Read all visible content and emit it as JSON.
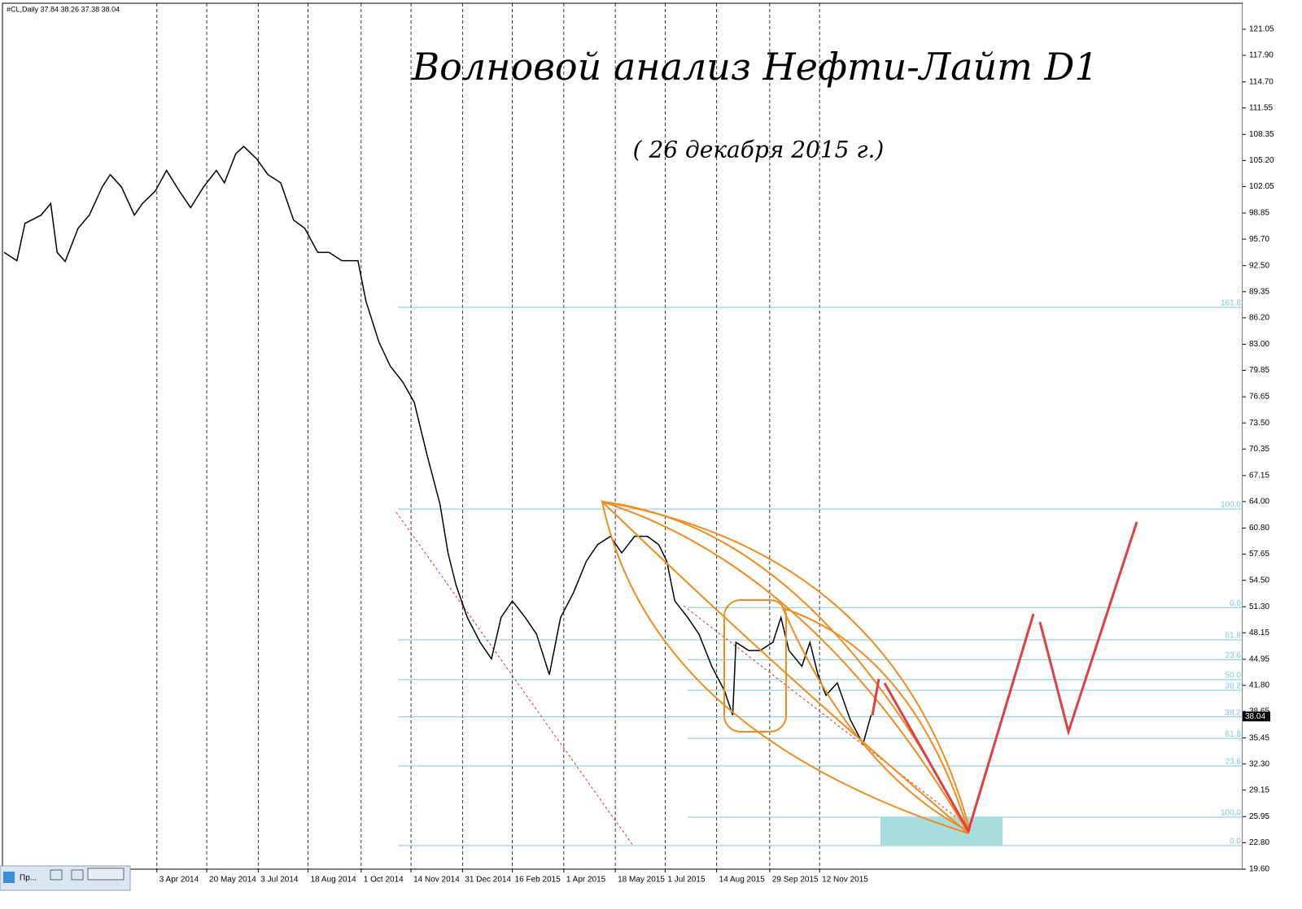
{
  "header": {
    "symbol": "#CL,Daily 37.84 38.26 37.38 38.04"
  },
  "taskbar": {
    "label": "Пр..."
  },
  "chart_data": {
    "type": "line",
    "title": "Волновой анализ Нефти-Лайт D1",
    "subtitle": "( 26 декабря 2015 г.)",
    "color": "#000000",
    "x": [
      0,
      8,
      13,
      23,
      29,
      33,
      38,
      46,
      53,
      61,
      66,
      73,
      81,
      86,
      94,
      101,
      109,
      116,
      124,
      132,
      137,
      144,
      149,
      157,
      164,
      172,
      180,
      187,
      195,
      202,
      210,
      220,
      225,
      233,
      240,
      248,
      255,
      263,
      271,
      276,
      281,
      288,
      296,
      303,
      309,
      316,
      324,
      331,
      339,
      346,
      354,
      362,
      369,
      377,
      384,
      392,
      400,
      407,
      412,
      417,
      425,
      432,
      440,
      448,
      453,
      455,
      463,
      470,
      478,
      483,
      488,
      496,
      501,
      506,
      511,
      518,
      526,
      534,
      539
    ],
    "values": [
      94.1,
      93.1,
      97.6,
      98.6,
      100.0,
      94.1,
      93.0,
      97.0,
      98.6,
      102.0,
      103.5,
      102.0,
      98.6,
      100.0,
      101.5,
      104.0,
      101.5,
      99.5,
      102.0,
      104.0,
      102.5,
      106.0,
      106.9,
      105.4,
      103.5,
      102.5,
      98.0,
      97.0,
      94.1,
      94.1,
      93.1,
      93.1,
      88.2,
      83.3,
      80.4,
      78.4,
      76.0,
      69.6,
      63.7,
      57.8,
      53.9,
      50.0,
      47.0,
      45.0,
      50.0,
      52.0,
      50.0,
      48.0,
      43.1,
      50.0,
      53.0,
      56.8,
      58.8,
      59.8,
      57.8,
      59.8,
      59.8,
      58.8,
      56.8,
      52.0,
      50.0,
      48.0,
      44.1,
      41.1,
      38.2,
      47.0,
      46.0,
      46.0,
      47.0,
      50.0,
      46.0,
      44.1,
      47.0,
      43.1,
      40.6,
      42.1,
      37.7,
      34.7,
      38.2
    ],
    "last_price": 38.04,
    "xlim": [
      0,
      770
    ],
    "xticks": [
      {
        "value": 95,
        "label": "3 Apr 2014"
      },
      {
        "value": 126,
        "label": "20 May 2014"
      },
      {
        "value": 158,
        "label": "3 Jul 2014"
      },
      {
        "value": 189,
        "label": "18 Aug 2014"
      },
      {
        "value": 222,
        "label": "1 Oct 2014"
      },
      {
        "value": 253,
        "label": "14 Nov 2014"
      },
      {
        "value": 285,
        "label": "31 Dec 2014"
      },
      {
        "value": 316,
        "label": "16 Feb 2015"
      },
      {
        "value": 348,
        "label": "1 Apr 2015"
      },
      {
        "value": 380,
        "label": "18 May 2015"
      },
      {
        "value": 411,
        "label": "1 Jul 2015"
      },
      {
        "value": 443,
        "label": "14 Aug 2015"
      },
      {
        "value": 476,
        "label": "29 Sep 2015"
      },
      {
        "value": 507,
        "label": "12 Nov 2015"
      }
    ],
    "ylim": [
      19.6,
      121.05
    ],
    "yticks": [
      {
        "value": 19.6,
        "label": "19.60"
      },
      {
        "value": 22.8,
        "label": "22.80"
      },
      {
        "value": 25.95,
        "label": "25.95"
      },
      {
        "value": 29.15,
        "label": "29.15"
      },
      {
        "value": 32.3,
        "label": "32.30"
      },
      {
        "value": 35.45,
        "label": "35.45"
      },
      {
        "value": 38.65,
        "label": "38.65"
      },
      {
        "value": 41.8,
        "label": "41.80"
      },
      {
        "value": 44.95,
        "label": "44.95"
      },
      {
        "value": 48.15,
        "label": "48.15"
      },
      {
        "value": 51.3,
        "label": "51.30"
      },
      {
        "value": 54.5,
        "label": "54.50"
      },
      {
        "value": 57.65,
        "label": "57.65"
      },
      {
        "value": 60.8,
        "label": "60.80"
      },
      {
        "value": 64.0,
        "label": "64.00"
      },
      {
        "value": 67.15,
        "label": "67.15"
      },
      {
        "value": 70.35,
        "label": "70.35"
      },
      {
        "value": 73.5,
        "label": "73.50"
      },
      {
        "value": 76.65,
        "label": "76.65"
      },
      {
        "value": 79.85,
        "label": "79.85"
      },
      {
        "value": 83.0,
        "label": "83.00"
      },
      {
        "value": 86.2,
        "label": "86.20"
      },
      {
        "value": 89.35,
        "label": "89.35"
      },
      {
        "value": 92.5,
        "label": "92.50"
      },
      {
        "value": 95.7,
        "label": "95.70"
      },
      {
        "value": 98.85,
        "label": "98.85"
      },
      {
        "value": 102.05,
        "label": "102.05"
      },
      {
        "value": 105.2,
        "label": "105.20"
      },
      {
        "value": 108.35,
        "label": "108.35"
      },
      {
        "value": 111.55,
        "label": "111.55"
      },
      {
        "value": 114.7,
        "label": "114.70"
      },
      {
        "value": 117.9,
        "label": "117.90"
      },
      {
        "value": 121.05,
        "label": "121.05"
      }
    ],
    "grid": true,
    "fib_color": "#7ec8e3",
    "fib_levels": [
      {
        "label": "161.8",
        "value": 87.46,
        "start": 245
      },
      {
        "label": "100.0",
        "value": 63.1,
        "start": 245
      },
      {
        "label": "0.0",
        "value": 51.2,
        "start": 425
      },
      {
        "label": "61.8",
        "value": 47.3,
        "start": 245
      },
      {
        "label": "23.6",
        "value": 44.9,
        "start": 425
      },
      {
        "label": "50.0",
        "value": 42.5,
        "start": 245
      },
      {
        "label": "38.2",
        "value": 41.2,
        "start": 425
      },
      {
        "label": "38.2",
        "value": 38.0,
        "start": 245
      },
      {
        "label": "61.8",
        "value": 35.4,
        "start": 425
      },
      {
        "label": "23.6",
        "value": 32.07,
        "start": 245
      },
      {
        "label": "100.0",
        "value": 25.88,
        "start": 425
      },
      {
        "label": "0.0",
        "value": 22.45,
        "start": 245
      }
    ]
  }
}
